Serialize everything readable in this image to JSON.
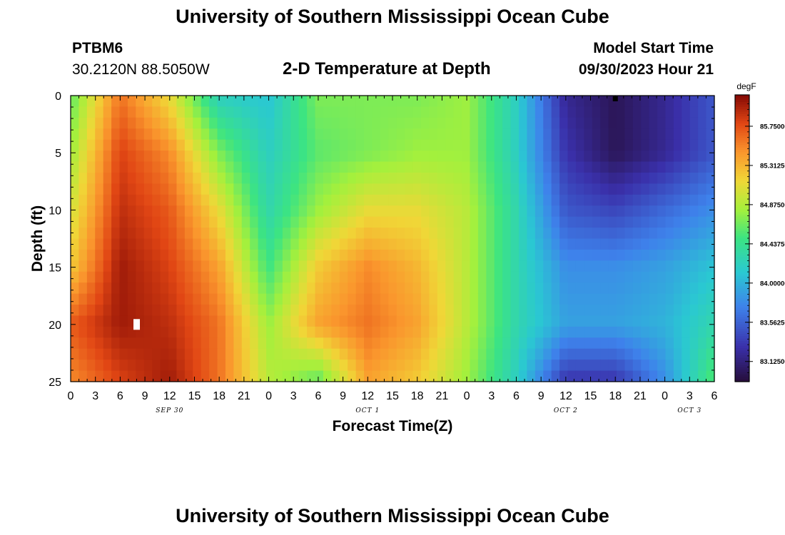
{
  "header": {
    "title": "University of Southern Mississippi Ocean Cube",
    "station": "PTBM6",
    "coords": "30.2120N  88.5050W",
    "plot_title": "2-D Temperature at Depth",
    "model_start_label": "Model Start Time",
    "model_start_value": "09/30/2023 Hour 21"
  },
  "footer": {
    "title": "University of Southern Mississippi Ocean Cube"
  },
  "chart_data": {
    "type": "heatmap",
    "title": "2-D Temperature at Depth",
    "xlabel": "Forecast Time(Z)",
    "ylabel": "Depth (ft)",
    "x_ticks": [
      "0",
      "3",
      "6",
      "9",
      "12",
      "15",
      "18",
      "21",
      "0",
      "3",
      "6",
      "9",
      "12",
      "15",
      "18",
      "21",
      "0",
      "3",
      "6",
      "9",
      "12",
      "15",
      "18",
      "21",
      "0",
      "3",
      "6"
    ],
    "x_range_hours": [
      0,
      78
    ],
    "date_labels": [
      {
        "text": "SEP 30",
        "hour": 12
      },
      {
        "text": "OCT 1",
        "hour": 36
      },
      {
        "text": "OCT 2",
        "hour": 60
      },
      {
        "text": "OCT 3",
        "hour": 75
      }
    ],
    "y_ticks": [
      0,
      5,
      10,
      15,
      20,
      25
    ],
    "y_range": [
      0,
      25
    ],
    "y_inverted": true,
    "colorbar": {
      "unit": "degF",
      "ticks": [
        "85.75000",
        "85.31250",
        "84.87500",
        "84.43750",
        "84.00000",
        "83.56250",
        "83.12500"
      ],
      "tick_values": [
        85.75,
        85.3125,
        84.875,
        84.4375,
        84.0,
        83.5625,
        83.125
      ],
      "range": [
        82.9,
        86.1
      ]
    },
    "grid": false,
    "legend": "colorbar-right",
    "grid_resolution": {
      "columns": 79,
      "rows": 26
    },
    "temperature_field_nodes": {
      "hours": [
        0,
        6,
        12,
        18,
        24,
        30,
        36,
        42,
        48,
        54,
        60,
        66,
        72,
        78
      ],
      "depths": [
        0,
        5,
        10,
        15,
        20,
        25
      ],
      "values_degF": [
        [
          84.6,
          85.6,
          85.1,
          84.2,
          84.1,
          84.7,
          84.7,
          84.7,
          84.8,
          84.2,
          83.2,
          83.0,
          83.2,
          83.5
        ],
        [
          84.8,
          85.8,
          85.5,
          84.7,
          84.2,
          84.6,
          84.7,
          84.8,
          84.8,
          84.2,
          83.3,
          83.0,
          83.2,
          83.5
        ],
        [
          85.0,
          85.9,
          85.7,
          85.1,
          84.3,
          84.8,
          85.1,
          85.1,
          84.9,
          84.3,
          83.5,
          83.4,
          83.6,
          83.8
        ],
        [
          85.2,
          86.0,
          85.8,
          85.4,
          84.5,
          85.2,
          85.5,
          85.3,
          84.9,
          84.3,
          83.8,
          83.8,
          83.9,
          84.1
        ],
        [
          85.7,
          86.0,
          85.9,
          85.6,
          84.8,
          85.4,
          85.6,
          85.4,
          84.9,
          84.3,
          83.9,
          83.9,
          84.0,
          84.3
        ],
        [
          85.5,
          85.8,
          86.0,
          85.6,
          84.9,
          84.6,
          85.4,
          85.2,
          84.8,
          84.2,
          83.3,
          83.3,
          83.8,
          84.6
        ]
      ]
    },
    "markers": [
      {
        "hour": 8,
        "depth": 20,
        "color": "#ffffff"
      },
      {
        "hour": 66,
        "depth": 0,
        "color": "#000000"
      }
    ]
  }
}
